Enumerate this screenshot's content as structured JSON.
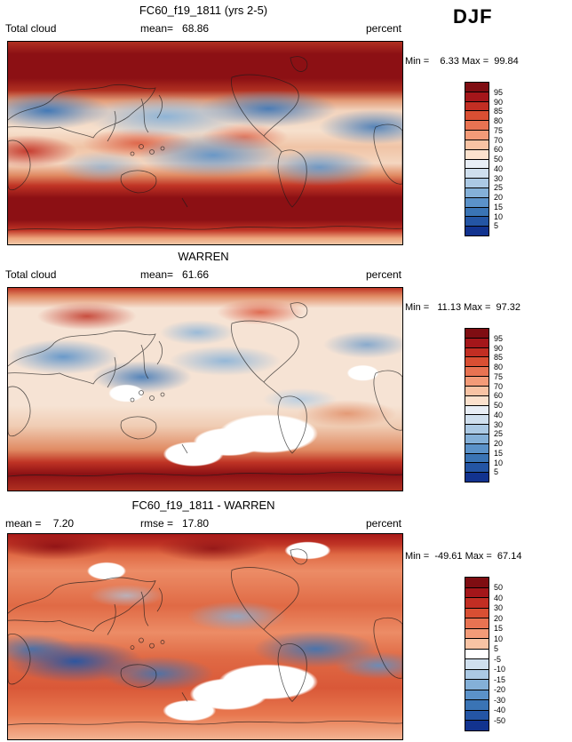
{
  "season": "DJF",
  "panels": [
    {
      "title": "FC60_f19_1811 (yrs 2-5)",
      "stat_left": "Total cloud",
      "stat_mid": "mean=   68.86",
      "stat_right": "percent",
      "minmax": "Min =    6.33 Max =  99.84",
      "colorbar": {
        "labels": [
          "95",
          "90",
          "85",
          "80",
          "75",
          "70",
          "60",
          "50",
          "40",
          "30",
          "25",
          "20",
          "15",
          "10",
          "5"
        ],
        "colors": [
          "#7f0d12",
          "#a4161a",
          "#c22e23",
          "#d94f33",
          "#e87352",
          "#f39b78",
          "#f8c3a4",
          "#fbe1cd",
          "#e8eef6",
          "#cfdfee",
          "#abc9e4",
          "#84b0d8",
          "#5b92c9",
          "#3a74b5",
          "#2455a4",
          "#12338f"
        ]
      }
    },
    {
      "title": "WARREN",
      "stat_left": "Total cloud",
      "stat_mid": "mean=   61.66",
      "stat_right": "percent",
      "minmax": "Min =   11.13 Max =  97.32",
      "colorbar": {
        "labels": [
          "95",
          "90",
          "85",
          "80",
          "75",
          "70",
          "60",
          "50",
          "40",
          "30",
          "25",
          "20",
          "15",
          "10",
          "5"
        ],
        "colors": [
          "#7f0d12",
          "#a4161a",
          "#c22e23",
          "#d94f33",
          "#e87352",
          "#f39b78",
          "#f8c3a4",
          "#fbe1cd",
          "#e8eef6",
          "#cfdfee",
          "#abc9e4",
          "#84b0d8",
          "#5b92c9",
          "#3a74b5",
          "#2455a4",
          "#12338f"
        ]
      }
    },
    {
      "title": "FC60_f19_1811 - WARREN",
      "stat_left": "mean =    7.20",
      "stat_mid": "rmse =   17.80",
      "stat_right": "percent",
      "minmax": "Min =  -49.61 Max =  67.14",
      "colorbar": {
        "labels": [
          "50",
          "40",
          "30",
          "20",
          "15",
          "10",
          "5",
          "-5",
          "-10",
          "-15",
          "-20",
          "-30",
          "-40",
          "-50"
        ],
        "colors": [
          "#7f0d12",
          "#a4161a",
          "#c22e23",
          "#d94f33",
          "#e87352",
          "#f39b78",
          "#f8c3a4",
          "#ffffff",
          "#cfdfee",
          "#abc9e4",
          "#84b0d8",
          "#5b92c9",
          "#3a74b5",
          "#2455a4",
          "#12338f"
        ]
      }
    }
  ],
  "chart_data": [
    {
      "type": "heatmap",
      "title": "FC60_f19_1811 (yrs 2-5)",
      "variable": "Total cloud",
      "units": "percent",
      "season": "DJF",
      "mean": 68.86,
      "min": 6.33,
      "max": 99.84,
      "levels": [
        5,
        10,
        15,
        20,
        25,
        30,
        40,
        50,
        60,
        70,
        75,
        80,
        85,
        90,
        95
      ],
      "palette": "blue-white-red",
      "projection": "global latitude-longitude map, Pacific-centered"
    },
    {
      "type": "heatmap",
      "title": "WARREN",
      "variable": "Total cloud",
      "units": "percent",
      "season": "DJF",
      "mean": 61.66,
      "min": 11.13,
      "max": 97.32,
      "levels": [
        5,
        10,
        15,
        20,
        25,
        30,
        40,
        50,
        60,
        70,
        75,
        80,
        85,
        90,
        95
      ],
      "palette": "blue-white-red",
      "projection": "global latitude-longitude map, Pacific-centered"
    },
    {
      "type": "heatmap",
      "title": "FC60_f19_1811 - WARREN",
      "units": "percent",
      "season": "DJF",
      "mean": 7.2,
      "rmse": 17.8,
      "min": -49.61,
      "max": 67.14,
      "levels": [
        -50,
        -40,
        -30,
        -20,
        -15,
        -10,
        -5,
        5,
        10,
        15,
        20,
        30,
        40,
        50
      ],
      "palette": "blue-white-red diverging",
      "projection": "global latitude-longitude map, Pacific-centered"
    }
  ]
}
